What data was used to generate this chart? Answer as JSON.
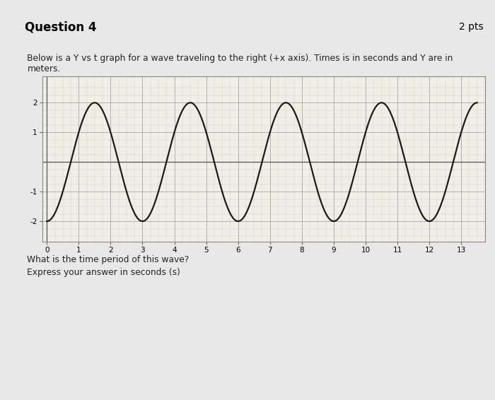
{
  "title": "Question 4",
  "pts_label": "2 pts",
  "description_line1": "Below is a Y vs t graph for a wave traveling to the right (+x axis). Times is in seconds and Y are in",
  "description_line2": "meters.",
  "question_line1": "What is the time period of this wave?",
  "question_line2": "Express your answer in seconds (s)",
  "amplitude": 2.0,
  "period": 3.0,
  "phase_shift": 0.75,
  "t_start": 0,
  "t_end": 13.5,
  "x_ticks": [
    0,
    1,
    2,
    3,
    4,
    5,
    6,
    7,
    8,
    9,
    10,
    11,
    12,
    13
  ],
  "y_ticks": [
    -2,
    -1,
    1,
    2
  ],
  "ylim": [
    -2.7,
    2.9
  ],
  "xlim": [
    -0.15,
    13.5
  ],
  "wave_color": "#1a1a1a",
  "minor_grid_color": "#d0d0d0",
  "major_grid_color": "#b0b0b0",
  "graph_bg": "#f0efe6",
  "outer_bg": "#e8e8e8",
  "panel_bg": "#f2f2f2",
  "header_bg": "#e0e0e0",
  "answer_box_color": "#ffffff"
}
